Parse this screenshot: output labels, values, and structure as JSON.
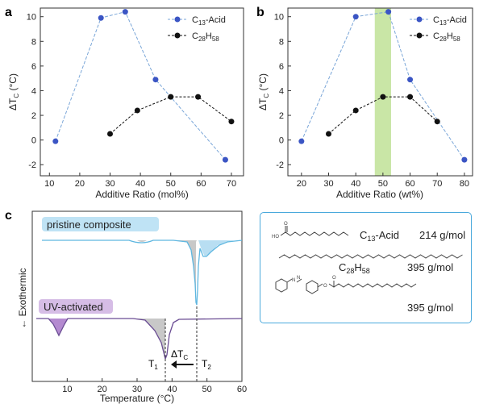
{
  "colors": {
    "acid": "#3b55c4",
    "alkane": "#111111",
    "acid_line": "#7aa6d8",
    "highlight": "#c9e6a6",
    "dsc_line": "#5fb7e0",
    "dsc_fill_blue": "#b8def2",
    "dsc_fill_purple": "#b48ad0",
    "dsc_fill_gray": "#c8c8c8",
    "box_border": "#4aa9dc",
    "label_blue_bg": "#bfe3f5",
    "label_purple_bg": "#d6bde6"
  },
  "chart_data": [
    {
      "panel": "a",
      "type": "line",
      "xlabel": "Additive Ratio (mol%)",
      "ylabel": "ΔT_C (°C)",
      "xlim": [
        7,
        74
      ],
      "ylim": [
        -2.9,
        10.7
      ],
      "xticks": [
        10,
        20,
        30,
        40,
        50,
        60,
        70
      ],
      "yticks": [
        -2,
        0,
        2,
        4,
        6,
        8,
        10
      ],
      "legend": "top-right",
      "series": [
        {
          "name": "C13-Acid",
          "x": [
            12,
            27,
            35,
            45,
            68
          ],
          "y": [
            -0.1,
            9.9,
            10.4,
            4.9,
            -1.6
          ]
        },
        {
          "name": "C28H58",
          "x": [
            30,
            39,
            50,
            59,
            70
          ],
          "y": [
            0.5,
            2.4,
            3.5,
            3.5,
            1.5
          ]
        }
      ]
    },
    {
      "panel": "b",
      "type": "line",
      "xlabel": "Additive Ratio (wt%)",
      "ylabel": "ΔT_C (°C)",
      "xlim": [
        15,
        83
      ],
      "ylim": [
        -2.9,
        10.7
      ],
      "xticks": [
        20,
        30,
        40,
        50,
        60,
        70,
        80
      ],
      "yticks": [
        -2,
        0,
        2,
        4,
        6,
        8,
        10
      ],
      "legend": "top-right",
      "highlight_x": [
        47,
        53
      ],
      "series": [
        {
          "name": "C13-Acid",
          "x": [
            20,
            40,
            52,
            60,
            80
          ],
          "y": [
            -0.1,
            10.0,
            10.4,
            4.9,
            -1.6
          ]
        },
        {
          "name": "C28H58",
          "x": [
            30,
            40,
            50,
            60,
            70
          ],
          "y": [
            0.5,
            2.4,
            3.5,
            3.5,
            1.5
          ]
        }
      ]
    },
    {
      "panel": "c",
      "type": "line",
      "xlabel": "Temperature (°C)",
      "ylabel": "← Exothermic",
      "xlim": [
        0,
        60
      ],
      "xticks": [
        10,
        20,
        30,
        40,
        50,
        60
      ],
      "series": [
        {
          "name": "pristine composite",
          "x": [
            0,
            28,
            32,
            36,
            42,
            45,
            47,
            49,
            52,
            55,
            58,
            60
          ],
          "y": [
            0,
            0,
            -0.2,
            0,
            -0.3,
            -2.5,
            -11,
            -2,
            -1.5,
            -0.5,
            0,
            0
          ]
        },
        {
          "name": "UV-activated",
          "x": [
            0,
            6,
            8,
            10,
            14,
            28,
            33,
            36,
            38.5,
            40,
            44,
            60
          ],
          "y": [
            0,
            -1,
            -3.5,
            -1,
            0,
            0,
            -0.5,
            -3.5,
            -8,
            -2,
            0,
            0
          ]
        }
      ],
      "annotations": [
        "T1",
        "T2",
        "ΔTC"
      ]
    }
  ],
  "panel_labels": {
    "a": "a",
    "b": "b",
    "c": "c"
  },
  "axis_text": {
    "a_xlabel": "Additive Ratio (mol%)",
    "b_xlabel": "Additive Ratio (wt%)",
    "c_xlabel": "Temperature (°C)",
    "c_ylabel": "← Exothermic",
    "delta": "ΔT",
    "sub_c": "C",
    "unit": " (°C)"
  },
  "legend": {
    "acid_main": "C",
    "acid_sub": "13",
    "acid_tail": "-Acid",
    "alk_main": "C",
    "alk_sub1": "28",
    "alk_mid": "H",
    "alk_sub2": "58"
  },
  "dsc_labels": {
    "pristine": "pristine composite",
    "uv": "UV-activated",
    "t1": "T",
    "t1_sub": "1",
    "t2": "T",
    "t2_sub": "2",
    "dtc": "ΔT",
    "dtc_sub": "C"
  },
  "molecules": [
    {
      "name_main": "C",
      "name_sub": "13",
      "name_tail": "-Acid",
      "mass": "214 g/mol"
    },
    {
      "name_main": "C",
      "name_sub1": "28",
      "name_mid": "H",
      "name_sub2": "58",
      "mass": "395 g/mol"
    },
    {
      "mass": "395 g/mol"
    }
  ],
  "atom_labels": {
    "ho": "HO",
    "o1": "O",
    "n1": "N",
    "n2": "N",
    "o2": "O",
    "o3": "O"
  }
}
